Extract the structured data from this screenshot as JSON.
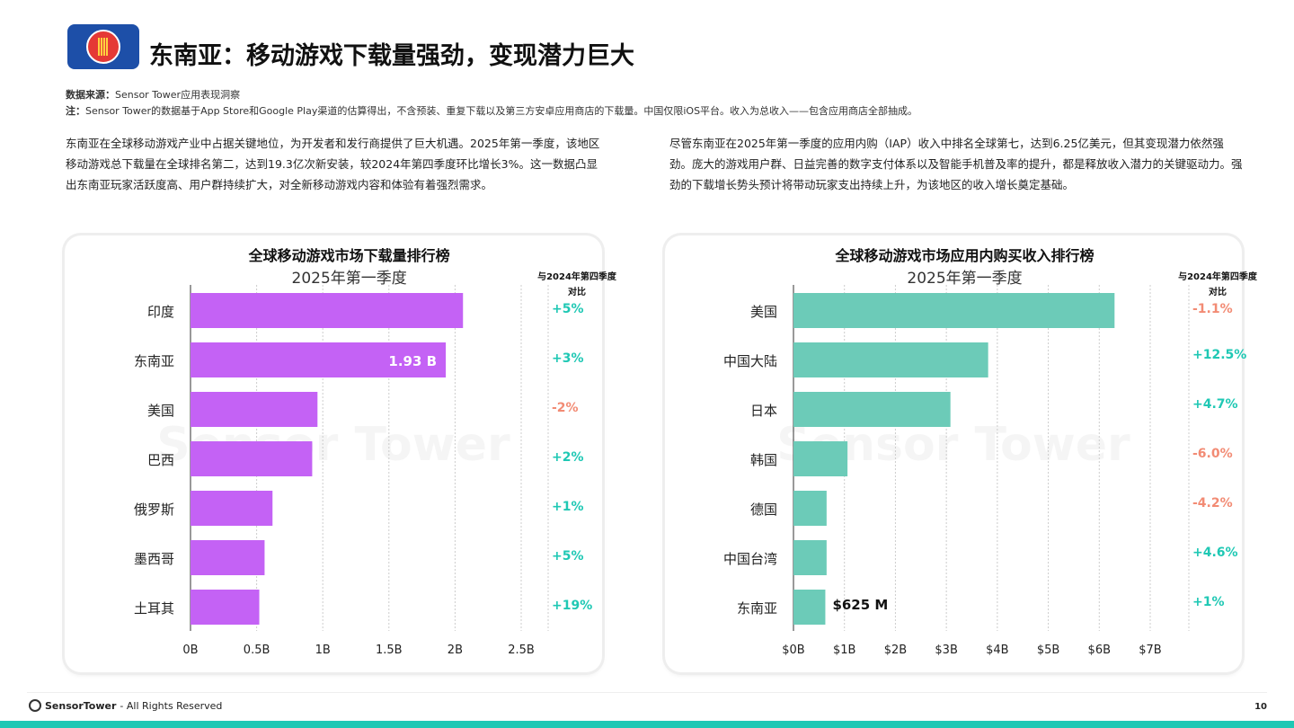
{
  "header": {
    "title": "东南亚：移动游戏下载量强劲，变现潜力巨大"
  },
  "source": {
    "label": "数据来源：",
    "text": "Sensor Tower应用表现洞察",
    "note_label": "注：",
    "note": "Sensor Tower的数据基于App Store和Google Play渠道的估算得出，不含预装、重复下载以及第三方安卓应用商店的下载量。中国仅限iOS平台。收入为总收入——包含应用商店全部抽成。"
  },
  "paragraphs": {
    "left": "东南亚在全球移动游戏产业中占据关键地位，为开发者和发行商提供了巨大机遇。2025年第一季度，该地区移动游戏总下载量在全球排名第二，达到19.3亿次新安装，较2024年第四季度环比增长3%。这一数据凸显出东南亚玩家活跃度高、用户群持续扩大，对全新移动游戏内容和体验有着强烈需求。",
    "right": "尽管东南亚在2025年第一季度的应用内购（IAP）收入中排名全球第七，达到6.25亿美元，但其变现潜力依然强劲。庞大的游戏用户群、日益完善的数字支付体系以及智能手机普及率的提升，都是释放收入潜力的关键驱动力。强劲的下载增长势头预计将带动玩家支出持续上升，为该地区的收入增长奠定基础。"
  },
  "colors": {
    "positive": "#1fc8b4",
    "negative": "#f28b74",
    "downloads_bar": "#c462f5",
    "revenue_bar": "#6ccbb8"
  },
  "chart_data": [
    {
      "type": "bar",
      "orientation": "horizontal",
      "title": "全球移动游戏市场下载量排行榜",
      "subtitle": "2025年第一季度",
      "change_header": "与2024年第四季度对比",
      "categories": [
        "印度",
        "东南亚",
        "美国",
        "巴西",
        "俄罗斯",
        "墨西哥",
        "土耳其"
      ],
      "values": [
        2.06,
        1.93,
        0.96,
        0.92,
        0.62,
        0.56,
        0.52
      ],
      "changes": [
        "+5%",
        "+3%",
        "-2%",
        "+2%",
        "+1%",
        "+5%",
        "+19%"
      ],
      "data_labels": {
        "东南亚": "1.93 B"
      },
      "ticks": [
        "0B",
        "0.5B",
        "1B",
        "1.5B",
        "2B",
        "2.5B"
      ],
      "tick_values": [
        0,
        0.5,
        1,
        1.5,
        2,
        2.5
      ],
      "xlim": [
        0,
        2.5
      ],
      "unit": "B"
    },
    {
      "type": "bar",
      "orientation": "horizontal",
      "title": "全球移动游戏市场应用内购买收入排行榜",
      "subtitle": "2025年第一季度",
      "change_header": "与2024年第四季度对比",
      "categories": [
        "美国",
        "中国大陆",
        "日本",
        "韩国",
        "德国",
        "中国台湾",
        "东南亚"
      ],
      "values": [
        6.3,
        3.82,
        3.08,
        1.06,
        0.65,
        0.65,
        0.625
      ],
      "changes": [
        "-1.1%",
        "+12.5%",
        "+4.7%",
        "-6.0%",
        "-4.2%",
        "+4.6%",
        "+1%"
      ],
      "data_labels": {
        "东南亚": "$625 M"
      },
      "ticks": [
        "$0B",
        "$1B",
        "$2B",
        "$3B",
        "$4B",
        "$5B",
        "$6B",
        "$7B"
      ],
      "tick_values": [
        0,
        1,
        2,
        3,
        4,
        5,
        6,
        7
      ],
      "xlim": [
        0,
        7
      ],
      "unit": "$B"
    }
  ],
  "watermark": "Sensor Tower",
  "footer": {
    "brand": "SensorTower",
    "rights": "- All Rights Reserved",
    "page": "10"
  }
}
